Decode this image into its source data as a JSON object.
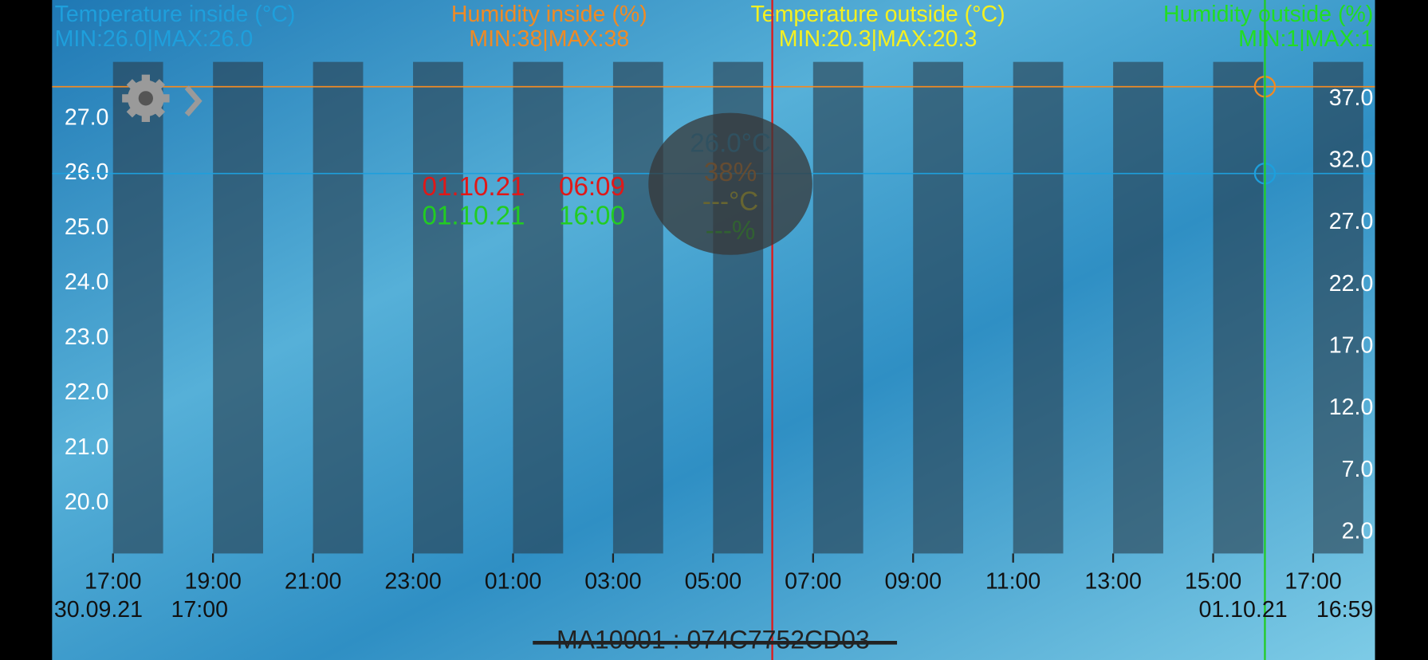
{
  "chart_data": {
    "type": "line",
    "categories": [
      "17:00",
      "19:00",
      "21:00",
      "23:00",
      "01:00",
      "03:00",
      "05:00",
      "07:00",
      "09:00",
      "11:00",
      "13:00",
      "15:00",
      "17:00"
    ],
    "series": [
      {
        "name": "Temperature inside (°C)",
        "color": "#1e9fdc",
        "value": 26.0,
        "range_label": "MIN:26.0|MAX:26.0"
      },
      {
        "name": "Humidity inside (%)",
        "color": "#f08a24",
        "value": 38,
        "axis": "y2",
        "range_label": "MIN:38|MAX:38"
      },
      {
        "name": "Temperature outside (°C)",
        "color": "#f5f020",
        "range_label": "MIN:20.3|MAX:20.3"
      },
      {
        "name": "Humidity outside (%)",
        "color": "#22dd22",
        "axis": "y2",
        "range_label": "MIN:1|MAX:1"
      }
    ],
    "ylim": [
      19.09,
      28.03
    ],
    "yticks": [
      {
        "value": 20,
        "label": "20.0"
      },
      {
        "value": 21,
        "label": "21.0"
      },
      {
        "value": 22,
        "label": "22.0"
      },
      {
        "value": 23,
        "label": "23.0"
      },
      {
        "value": 24,
        "label": "24.0"
      },
      {
        "value": 25,
        "label": "25.0"
      },
      {
        "value": 26,
        "label": "26.0"
      },
      {
        "value": 27,
        "label": "27.0"
      }
    ],
    "y2lim": [
      0.3,
      40.0
    ],
    "y2ticks": [
      {
        "value": 2,
        "label": "2.0"
      },
      {
        "value": 7,
        "label": "7.0"
      },
      {
        "value": 12,
        "label": "12.0"
      },
      {
        "value": 17,
        "label": "17.0"
      },
      {
        "value": 22,
        "label": "22.0"
      },
      {
        "value": 27,
        "label": "27.0"
      },
      {
        "value": 32,
        "label": "32.0"
      },
      {
        "value": 37,
        "label": "37.0"
      }
    ]
  },
  "range_start": {
    "date": "30.09.21",
    "time": "17:00"
  },
  "range_end": {
    "date": "01.10.21",
    "time": "16:59"
  },
  "cursors": [
    {
      "date": "01.10.21",
      "time": "06:09",
      "color": "#e01818"
    },
    {
      "date": "01.10.21",
      "time": "16:00",
      "color": "#22cc22"
    }
  ],
  "readout": [
    "26.0°C",
    "38%",
    "---°C",
    "---%"
  ],
  "device": "MA10001 : 074C7752CD03"
}
